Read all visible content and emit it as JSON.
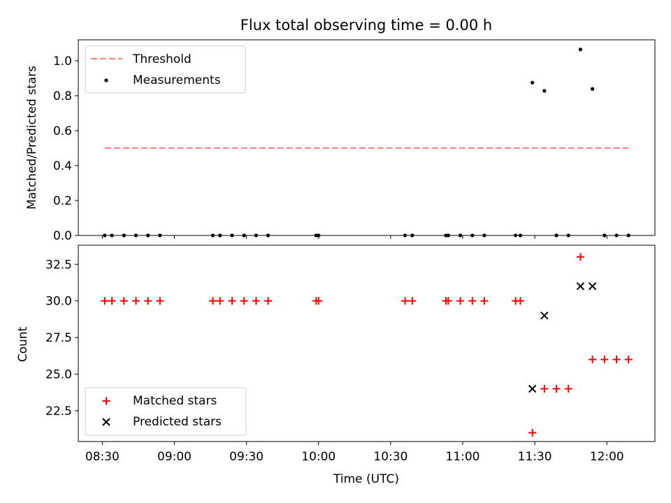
{
  "chart_data": [
    {
      "type": "scatter",
      "title": "Flux total observing time = 0.00 h",
      "xlabel": "",
      "ylabel": "Matched/Predicted stars",
      "ylim": [
        0,
        1.12
      ],
      "yticks": [
        0.0,
        0.2,
        0.4,
        0.6,
        0.8,
        1.0
      ],
      "yticklabels": [
        "0.0",
        "0.2",
        "0.4",
        "0.6",
        "0.8",
        "1.0"
      ],
      "xlim": [
        "08:20",
        "12:20"
      ],
      "threshold": {
        "name": "Threshold",
        "value": 0.5,
        "x": [
          "08:31",
          "12:09"
        ],
        "color": "#ff7f7f"
      },
      "series": [
        {
          "name": "Measurements",
          "marker": "dot",
          "color": "#000000",
          "x": [
            "08:31",
            "08:34",
            "08:39",
            "08:44",
            "08:49",
            "08:54",
            "09:16",
            "09:19",
            "09:24",
            "09:29",
            "09:34",
            "09:39",
            "09:59",
            "10:00",
            "10:36",
            "10:39",
            "10:53",
            "10:54",
            "10:59",
            "11:04",
            "11:09",
            "11:22",
            "11:24",
            "11:29",
            "11:34",
            "11:39",
            "11:44",
            "11:49",
            "11:54",
            "11:59",
            "12:04",
            "12:09"
          ],
          "y": [
            0,
            0,
            0,
            0,
            0,
            0,
            0,
            0,
            0,
            0,
            0,
            0,
            0,
            0,
            0,
            0,
            0,
            0,
            0,
            0,
            0,
            0,
            0,
            0.875,
            0.828,
            0,
            0,
            1.065,
            0.839,
            0,
            0,
            0
          ]
        }
      ],
      "legend": {
        "placement": "upper-left"
      }
    },
    {
      "type": "scatter",
      "title": "",
      "xlabel": "Time (UTC)",
      "ylabel": "Count",
      "ylim": [
        20.4,
        33.8
      ],
      "yticks": [
        22.5,
        25.0,
        27.5,
        30.0,
        32.5
      ],
      "yticklabels": [
        "22.5",
        "25.0",
        "27.5",
        "30.0",
        "32.5"
      ],
      "xlim": [
        "08:20",
        "12:20"
      ],
      "xticks": [
        "08:30",
        "09:00",
        "09:30",
        "10:00",
        "10:30",
        "11:00",
        "11:30",
        "12:00"
      ],
      "series": [
        {
          "name": "Matched stars",
          "marker": "plus",
          "color": "#ff0000",
          "x": [
            "08:31",
            "08:34",
            "08:39",
            "08:44",
            "08:49",
            "08:54",
            "09:16",
            "09:19",
            "09:24",
            "09:29",
            "09:34",
            "09:39",
            "09:59",
            "10:00",
            "10:36",
            "10:39",
            "10:53",
            "10:54",
            "10:59",
            "11:04",
            "11:09",
            "11:22",
            "11:24",
            "11:29",
            "11:34",
            "11:39",
            "11:44",
            "11:49",
            "11:54",
            "11:59",
            "12:04",
            "12:09"
          ],
          "y": [
            30,
            30,
            30,
            30,
            30,
            30,
            30,
            30,
            30,
            30,
            30,
            30,
            30,
            30,
            30,
            30,
            30,
            30,
            30,
            30,
            30,
            30,
            30,
            21,
            24,
            24,
            24,
            33,
            26,
            26,
            26,
            26
          ]
        },
        {
          "name": "Predicted stars",
          "marker": "x",
          "color": "#000000",
          "x": [
            "11:29",
            "11:34",
            "11:49",
            "11:54"
          ],
          "y": [
            24,
            29,
            31,
            31
          ]
        }
      ],
      "legend": {
        "placement": "lower-left"
      }
    }
  ]
}
